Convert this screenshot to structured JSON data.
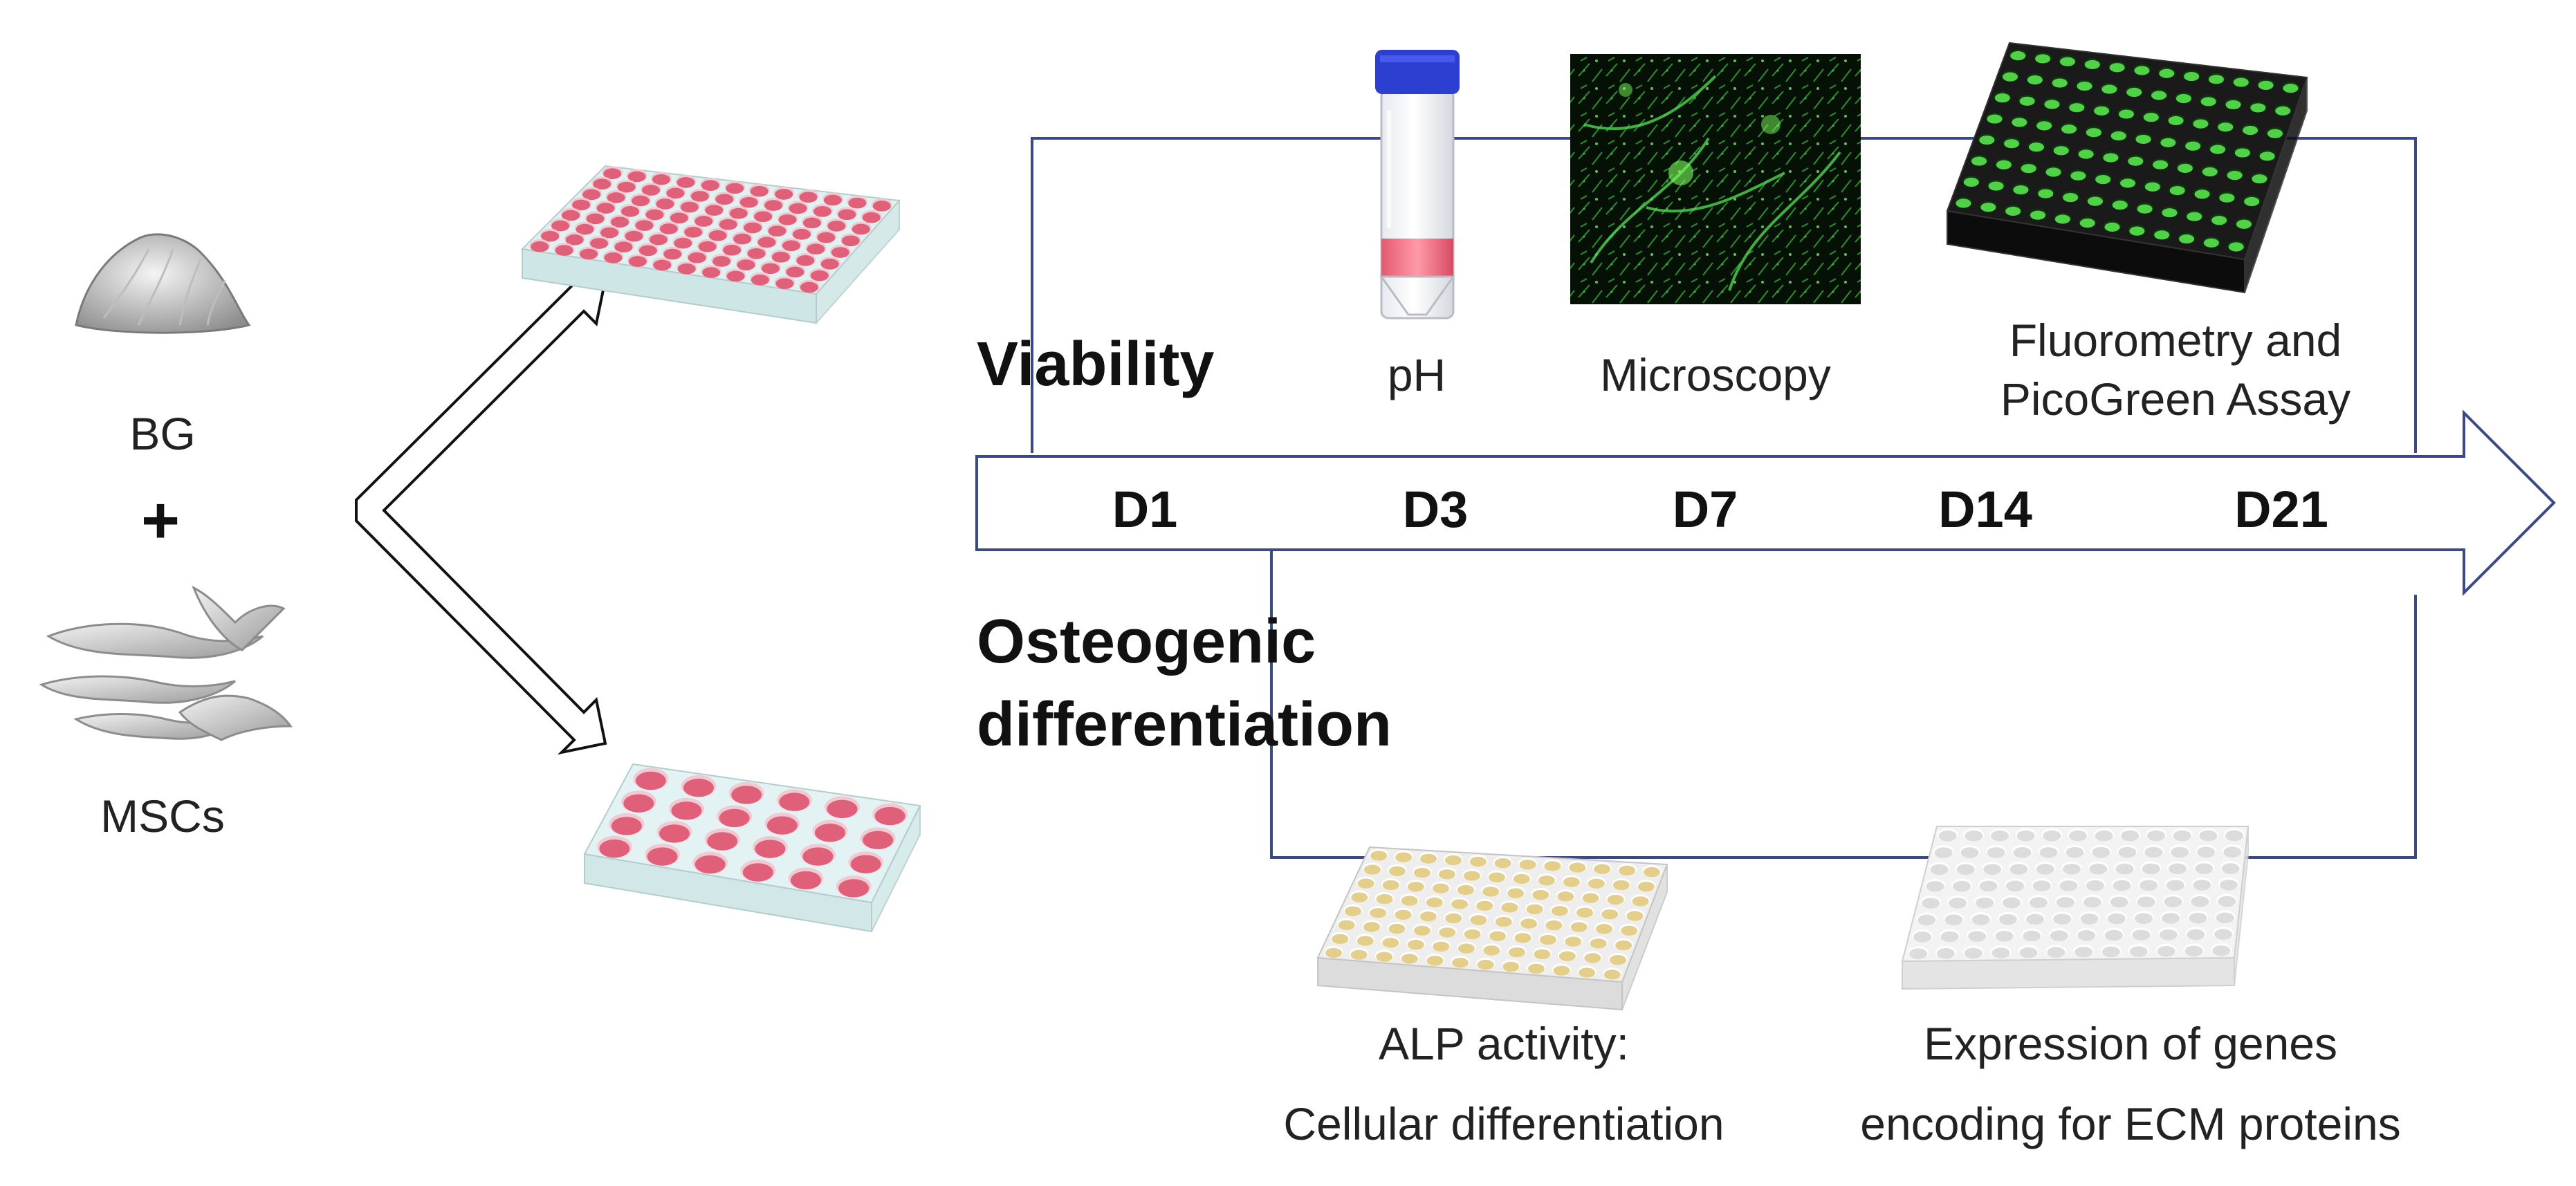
{
  "inputs": {
    "bg_label": "BG",
    "plus": "+",
    "msc_label": "MSCs"
  },
  "viability": {
    "heading": "Viability",
    "assays": [
      "pH",
      "Microscopy",
      "Fluorometry and",
      "PicoGreen Assay"
    ]
  },
  "timeline": {
    "days": [
      "D1",
      "D3",
      "D7",
      "D14",
      "D21"
    ]
  },
  "osteogenic": {
    "heading_line1": "Osteogenic",
    "heading_line2": "differentiation",
    "alp_line1": "ALP activity:",
    "alp_line2": "Cellular differentiation",
    "gene_line1": "Expression of genes",
    "gene_line2": "encoding for ECM proteins"
  },
  "colors": {
    "frame_line": "#3a4a86",
    "well_pink": "#e0607a",
    "tube_cap": "#2c3fd0",
    "fluor_green": "#3ec43a",
    "alp_yellow": "#e3cf8a"
  }
}
